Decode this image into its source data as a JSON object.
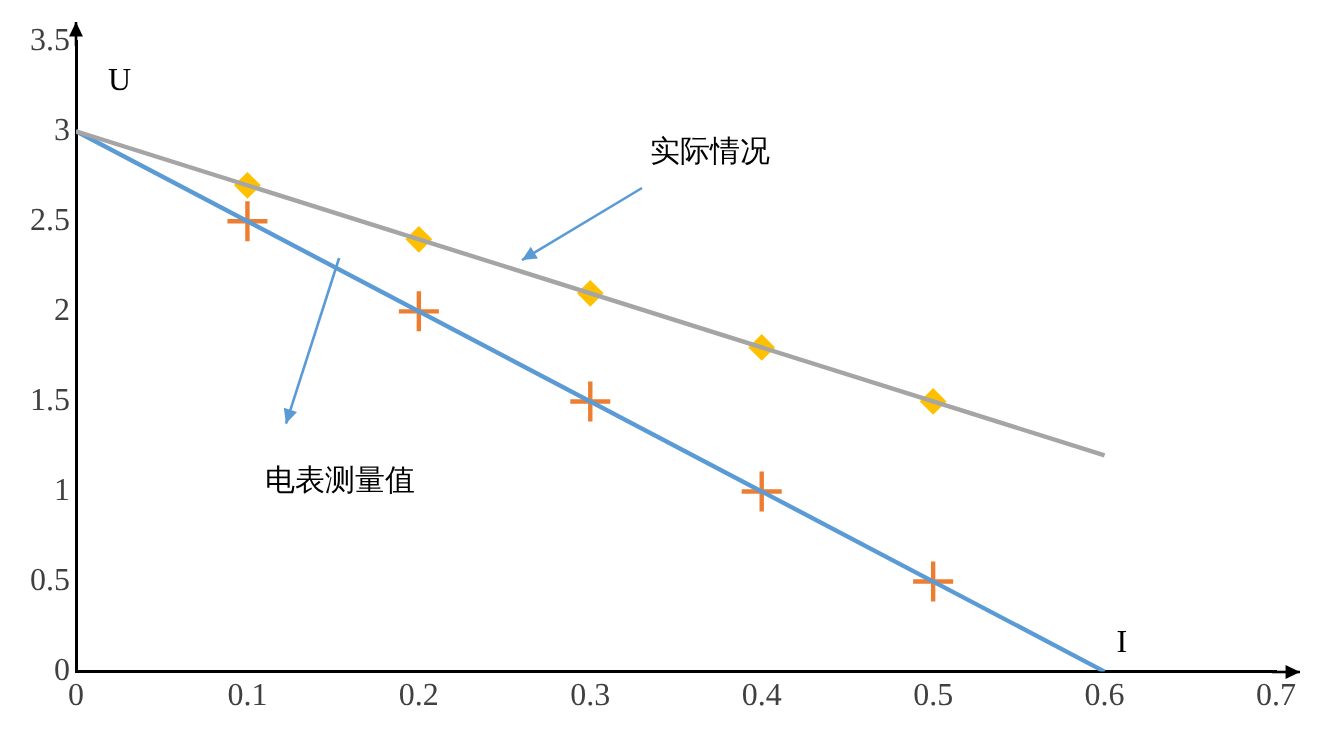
{
  "chart_data": {
    "type": "line",
    "xlabel": "I",
    "ylabel": "U",
    "xlim": [
      0,
      0.7
    ],
    "xticks": [
      0,
      0.1,
      0.2,
      0.3,
      0.4,
      0.5,
      0.6,
      0.7
    ],
    "ylim": [
      0,
      3.5
    ],
    "yticks": [
      0,
      0.5,
      1,
      1.5,
      2,
      2.5,
      3,
      3.5
    ],
    "grid": false,
    "legend": false,
    "annotations": [
      "实际情况",
      "电表测量值"
    ],
    "series": [
      {
        "color": "#a5a5a5",
        "x": [
          0,
          0.6
        ],
        "values": [
          3,
          1.2
        ],
        "marker": "none"
      },
      {
        "type": "scatter",
        "color": "#ffc000",
        "x": [
          0.1,
          0.2,
          0.3,
          0.4,
          0.5
        ],
        "values": [
          2.7,
          2.4,
          2.1,
          1.8,
          1.5
        ],
        "marker": "diamond"
      },
      {
        "color": "#5b9bd5",
        "x": [
          0,
          0.6
        ],
        "values": [
          3,
          0
        ],
        "marker": "none"
      },
      {
        "type": "scatter",
        "color": "#ed7d31",
        "x": [
          0.1,
          0.2,
          0.3,
          0.4,
          0.5
        ],
        "values": [
          2.5,
          2,
          1.5,
          1,
          0.5
        ],
        "marker": "cross"
      }
    ]
  }
}
